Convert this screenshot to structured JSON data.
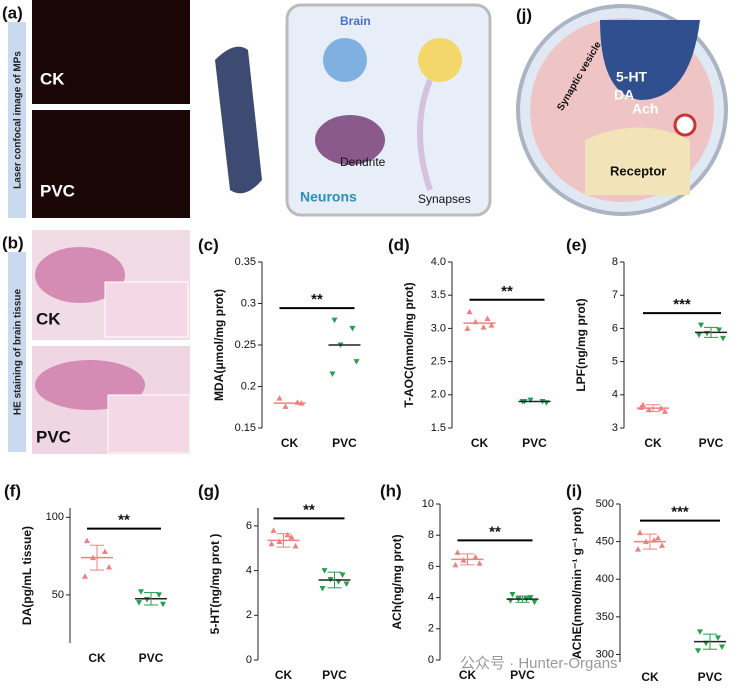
{
  "figure": {
    "a": {
      "label": "(a)",
      "side": "Laser confocal image of MPs",
      "ck": "CK",
      "pvc": "PVC"
    },
    "b": {
      "label": "(b)",
      "side": "HE staining of brain tissue",
      "ck": "CK",
      "pvc": "PVC"
    },
    "neurons": {
      "brain": "Brain",
      "neurons": "Neurons",
      "dendrite": "Dendrite",
      "synapses": "Synapses"
    },
    "j": {
      "label": "(j)",
      "vesicle": "Synaptic vesicle",
      "ht": "5-HT",
      "da": "DA",
      "ach": "Ach",
      "receptor": "Receptor"
    },
    "watermark": "公众号 · Hunter-Organs"
  },
  "chart_data": [
    {
      "type": "scatter",
      "label": "(c)",
      "ylabel": "MDA(μmol/mg prot)",
      "categories": [
        "CK",
        "PVC"
      ],
      "significance": "**",
      "ylim": [
        0.15,
        0.35
      ],
      "yticks": [
        0.15,
        0.2,
        0.25,
        0.3,
        0.35
      ],
      "series": [
        {
          "name": "CK",
          "color": "#f08080",
          "values": [
            0.186,
            0.181,
            0.176,
            0.18
          ],
          "mean": 0.18
        },
        {
          "name": "PVC",
          "color": "#22a04a",
          "values": [
            0.28,
            0.27,
            0.25,
            0.23,
            0.215
          ],
          "mean": 0.25
        }
      ]
    },
    {
      "type": "scatter",
      "label": "(d)",
      "ylabel": "T-AOC(mmol/mg prot)",
      "categories": [
        "CK",
        "PVC"
      ],
      "significance": "**",
      "ylim": [
        1.5,
        4.0
      ],
      "yticks": [
        1.5,
        {
          "value": 2,
          "label": "2.0"
        },
        2.5,
        {
          "value": 3,
          "label": "3.0"
        },
        3.5,
        {
          "value": 4,
          "label": "4.0"
        }
      ],
      "series": [
        {
          "name": "CK",
          "color": "#f08080",
          "values": [
            3.25,
            3.15,
            3.1,
            3.05,
            3.0,
            3.02
          ],
          "mean": 3.08
        },
        {
          "name": "PVC",
          "color": "#22a04a",
          "values": [
            1.9,
            1.9,
            1.92,
            1.88,
            1.9
          ],
          "mean": 1.9
        }
      ]
    },
    {
      "type": "scatter",
      "label": "(e)",
      "ylabel": "LPF(ng/mg prot)",
      "categories": [
        "CK",
        "PVC"
      ],
      "significance": "***",
      "ylim": [
        3,
        8
      ],
      "yticks": [
        3,
        4,
        5,
        6,
        7,
        8
      ],
      "series": [
        {
          "name": "CK",
          "color": "#f08080",
          "values": [
            3.7,
            3.6,
            3.55,
            3.5,
            3.62
          ],
          "mean": 3.6,
          "sd": 0.1
        },
        {
          "name": "PVC",
          "color": "#22a04a",
          "values": [
            6.1,
            5.95,
            5.85,
            5.7,
            5.8
          ],
          "mean": 5.88,
          "sd": 0.15
        }
      ]
    },
    {
      "type": "scatter",
      "label": "(f)",
      "ylabel": "DA(pg/mL tissue)",
      "categories": [
        "CK",
        "PVC"
      ],
      "significance": "**",
      "ylim": [
        19,
        106
      ],
      "yticks": [
        50,
        100
      ],
      "series": [
        {
          "name": "CK",
          "color": "#f08080",
          "values": [
            85,
            78,
            74,
            68,
            62
          ],
          "mean": 74,
          "sd": 8
        },
        {
          "name": "PVC",
          "color": "#22a04a",
          "values": [
            52,
            50,
            47,
            44,
            45
          ],
          "mean": 47.5,
          "sd": 4
        }
      ]
    },
    {
      "type": "scatter",
      "label": "(g)",
      "ylabel": "5-HT(ng/mg prot )",
      "categories": [
        "CK",
        "PVC"
      ],
      "significance": "**",
      "ylim": [
        0,
        6.8
      ],
      "yticks": [
        0,
        2,
        4,
        6
      ],
      "series": [
        {
          "name": "CK",
          "color": "#f08080",
          "values": [
            5.8,
            5.5,
            5.3,
            5.1,
            5.2,
            5.6
          ],
          "mean": 5.35,
          "sd": 0.3
        },
        {
          "name": "PVC",
          "color": "#22a04a",
          "values": [
            4.0,
            3.8,
            3.6,
            3.4,
            3.2,
            3.5
          ],
          "mean": 3.58,
          "sd": 0.35
        }
      ]
    },
    {
      "type": "scatter",
      "label": "(h)",
      "ylabel": "ACh(ng/mg prot)",
      "categories": [
        "CK",
        "PVC"
      ],
      "significance": "**",
      "ylim": [
        0,
        10
      ],
      "yticks": [
        0,
        2,
        4,
        6,
        8,
        10
      ],
      "series": [
        {
          "name": "CK",
          "color": "#f08080",
          "values": [
            6.9,
            6.6,
            6.4,
            6.2,
            6.1
          ],
          "mean": 6.45,
          "sd": 0.35
        },
        {
          "name": "PVC",
          "color": "#22a04a",
          "values": [
            4.2,
            4.0,
            3.9,
            3.7,
            3.8,
            3.9
          ],
          "mean": 3.9,
          "sd": 0.2
        }
      ]
    },
    {
      "type": "scatter",
      "label": "(i)",
      "ylabel": "AChE(nmol/min⁻¹ g⁻¹ prot)",
      "categories": [
        "CK",
        "PVC"
      ],
      "significance": "***",
      "ylim": [
        290,
        500
      ],
      "yticks": [
        300,
        350,
        400,
        450,
        500
      ],
      "series": [
        {
          "name": "CK",
          "color": "#f08080",
          "values": [
            462,
            455,
            450,
            445,
            440,
            452
          ],
          "mean": 450,
          "sd": 10
        },
        {
          "name": "PVC",
          "color": "#22a04a",
          "values": [
            330,
            322,
            315,
            310,
            305
          ],
          "mean": 317,
          "sd": 10
        }
      ]
    }
  ]
}
